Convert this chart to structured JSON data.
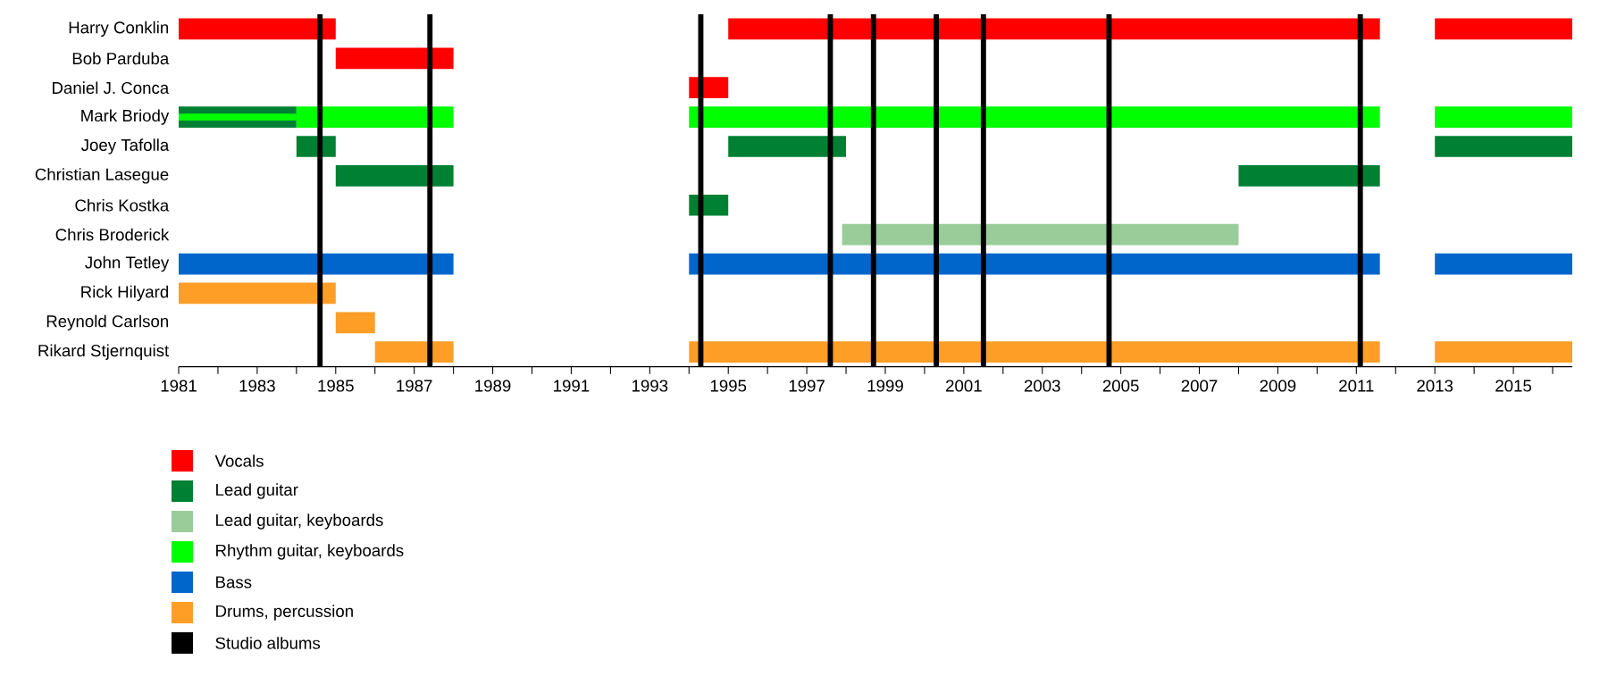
{
  "chart_data": {
    "type": "bar",
    "orientation": "horizontal",
    "categories": [
      "Harry Conklin",
      "Bob Parduba",
      "Daniel J. Conca",
      "Mark Briody",
      "Joey Tafolla",
      "Christian Lasegue",
      "Chris Kostka",
      "Chris Broderick",
      "John Tetley",
      "Rick Hilyard",
      "Reynold Carlson",
      "Rikard Stjernquist"
    ],
    "series": [
      {
        "name": "Vocals",
        "color": "#ff0000",
        "base": [
          1981,
          1985,
          1994,
          null,
          null,
          null,
          null,
          null,
          null,
          null,
          null,
          null
        ],
        "values": [
          4,
          3,
          1,
          null,
          null,
          null,
          null,
          null,
          null,
          null,
          null,
          null
        ]
      },
      {
        "color": "#ff0000",
        "base": [
          1995,
          null,
          null,
          null,
          null,
          null,
          null,
          null,
          null,
          null,
          null,
          null
        ],
        "values": [
          16.6,
          null,
          null,
          null,
          null,
          null,
          null,
          null,
          null,
          null,
          null,
          null
        ]
      },
      {
        "color": "#ff0000",
        "base": [
          2013,
          null,
          null,
          null,
          null,
          null,
          null,
          null,
          null,
          null,
          null,
          null
        ],
        "values": [
          3.5,
          null,
          null,
          null,
          null,
          null,
          null,
          null,
          null,
          null,
          null,
          null
        ]
      },
      {
        "name": "Lead guitar",
        "color": "#008033",
        "base": [
          null,
          null,
          null,
          1981,
          1984,
          1985,
          1994,
          null,
          null,
          null,
          null,
          null
        ],
        "values": [
          null,
          null,
          null,
          3,
          1,
          3,
          1,
          null,
          null,
          null,
          null,
          null
        ]
      },
      {
        "color": "#008033",
        "base": [
          null,
          null,
          null,
          null,
          1995,
          2008,
          null,
          null,
          null,
          null,
          null,
          null
        ],
        "values": [
          null,
          null,
          null,
          null,
          3,
          3.6,
          null,
          null,
          null,
          null,
          null,
          null
        ]
      },
      {
        "color": "#008033",
        "base": [
          null,
          null,
          null,
          null,
          2013,
          null,
          null,
          null,
          null,
          null,
          null,
          null
        ],
        "values": [
          null,
          null,
          null,
          null,
          3.5,
          null,
          null,
          null,
          null,
          null,
          null,
          null
        ]
      },
      {
        "name": "Lead guitar, keyboards",
        "color": "#99cc99",
        "base": [
          null,
          null,
          null,
          null,
          null,
          null,
          null,
          1997.9,
          null,
          null,
          null,
          null
        ],
        "values": [
          null,
          null,
          null,
          null,
          null,
          null,
          null,
          10.1,
          null,
          null,
          null,
          null
        ]
      },
      {
        "name": "Rhythm guitar, keyboards",
        "color": "#00ff00",
        "base": [
          null,
          null,
          null,
          1981,
          null,
          null,
          null,
          null,
          null,
          null,
          null,
          null
        ],
        "values": [
          null,
          null,
          null,
          3,
          null,
          null,
          null,
          null,
          null,
          null,
          null,
          null
        ]
      },
      {
        "color": "#00ff00",
        "base": [
          null,
          null,
          null,
          1984,
          null,
          null,
          null,
          null,
          null,
          null,
          null,
          null
        ],
        "values": [
          null,
          null,
          null,
          4,
          null,
          null,
          null,
          null,
          null,
          null,
          null,
          null
        ]
      },
      {
        "color": "#00ff00",
        "base": [
          null,
          null,
          null,
          1994,
          null,
          null,
          null,
          null,
          null,
          null,
          null,
          null
        ],
        "values": [
          null,
          null,
          null,
          17.6,
          null,
          null,
          null,
          null,
          null,
          null,
          null,
          null
        ]
      },
      {
        "color": "#00ff00",
        "base": [
          null,
          null,
          null,
          2013,
          null,
          null,
          null,
          null,
          null,
          null,
          null,
          null
        ],
        "values": [
          null,
          null,
          null,
          3.5,
          null,
          null,
          null,
          null,
          null,
          null,
          null,
          null
        ]
      },
      {
        "name": "Bass",
        "color": "#0066cc",
        "base": [
          null,
          null,
          null,
          null,
          null,
          null,
          null,
          null,
          1981,
          null,
          null,
          null
        ],
        "values": [
          null,
          null,
          null,
          null,
          null,
          null,
          null,
          null,
          7,
          null,
          null,
          null
        ]
      },
      {
        "color": "#0066cc",
        "base": [
          null,
          null,
          null,
          null,
          null,
          null,
          null,
          null,
          1994,
          null,
          null,
          null
        ],
        "values": [
          null,
          null,
          null,
          null,
          null,
          null,
          null,
          null,
          17.6,
          null,
          null,
          null
        ]
      },
      {
        "color": "#0066cc",
        "base": [
          null,
          null,
          null,
          null,
          null,
          null,
          null,
          null,
          2013,
          null,
          null,
          null
        ],
        "values": [
          null,
          null,
          null,
          null,
          null,
          null,
          null,
          null,
          3.5,
          null,
          null,
          null
        ]
      },
      {
        "name": "Drums, percussion",
        "color": "#ff9e26",
        "base": [
          null,
          null,
          null,
          null,
          null,
          null,
          null,
          null,
          null,
          1981,
          1985,
          1986
        ],
        "values": [
          null,
          null,
          null,
          null,
          null,
          null,
          null,
          null,
          null,
          4,
          1,
          2
        ]
      },
      {
        "color": "#ff9e26",
        "base": [
          null,
          null,
          null,
          null,
          null,
          null,
          null,
          null,
          null,
          null,
          null,
          1994
        ],
        "values": [
          null,
          null,
          null,
          null,
          null,
          null,
          null,
          null,
          null,
          null,
          null,
          17.6
        ]
      },
      {
        "color": "#ff9e26",
        "base": [
          null,
          null,
          null,
          null,
          null,
          null,
          null,
          null,
          null,
          null,
          null,
          2013
        ],
        "values": [
          null,
          null,
          null,
          null,
          null,
          null,
          null,
          null,
          null,
          null,
          null,
          3.5
        ]
      }
    ],
    "ref_lines": [
      {
        "axis": "x",
        "value": 1984.6,
        "label": "Studio albums",
        "color": "#000000"
      },
      {
        "axis": "x",
        "value": 1987.4,
        "color": "#000000"
      },
      {
        "axis": "x",
        "value": 1994.3,
        "color": "#000000"
      },
      {
        "axis": "x",
        "value": 1997.6,
        "color": "#000000"
      },
      {
        "axis": "x",
        "value": 1998.7,
        "color": "#000000"
      },
      {
        "axis": "x",
        "value": 2000.3,
        "color": "#000000"
      },
      {
        "axis": "x",
        "value": 2001.5,
        "color": "#000000"
      },
      {
        "axis": "x",
        "value": 2004.7,
        "color": "#000000"
      },
      {
        "axis": "x",
        "value": 2011.1,
        "color": "#000000"
      }
    ],
    "xlim": [
      1981,
      2016.5
    ],
    "xticks": [
      1981,
      {
        "value": 1982,
        "label": null
      },
      1983,
      {
        "value": 1984,
        "label": null
      },
      1985,
      {
        "value": 1986,
        "label": null
      },
      1987,
      {
        "value": 1988,
        "label": null
      },
      1989,
      {
        "value": 1990,
        "label": null
      },
      1991,
      {
        "value": 1992,
        "label": null
      },
      1993,
      {
        "value": 1994,
        "label": null
      },
      1995,
      {
        "value": 1996,
        "label": null
      },
      1997,
      {
        "value": 1998,
        "label": null
      },
      1999,
      {
        "value": 2000,
        "label": null
      },
      2001,
      {
        "value": 2002,
        "label": null
      },
      2003,
      {
        "value": 2004,
        "label": null
      },
      2005,
      {
        "value": 2006,
        "label": null
      },
      2007,
      {
        "value": 2008,
        "label": null
      },
      2009,
      {
        "value": 2010,
        "label": null
      },
      2011,
      {
        "value": 2012,
        "label": null
      },
      2013,
      {
        "value": 2014,
        "label": null
      },
      2015,
      {
        "value": 2016,
        "label": null
      }
    ],
    "grid": false,
    "legend": "bottom left"
  }
}
